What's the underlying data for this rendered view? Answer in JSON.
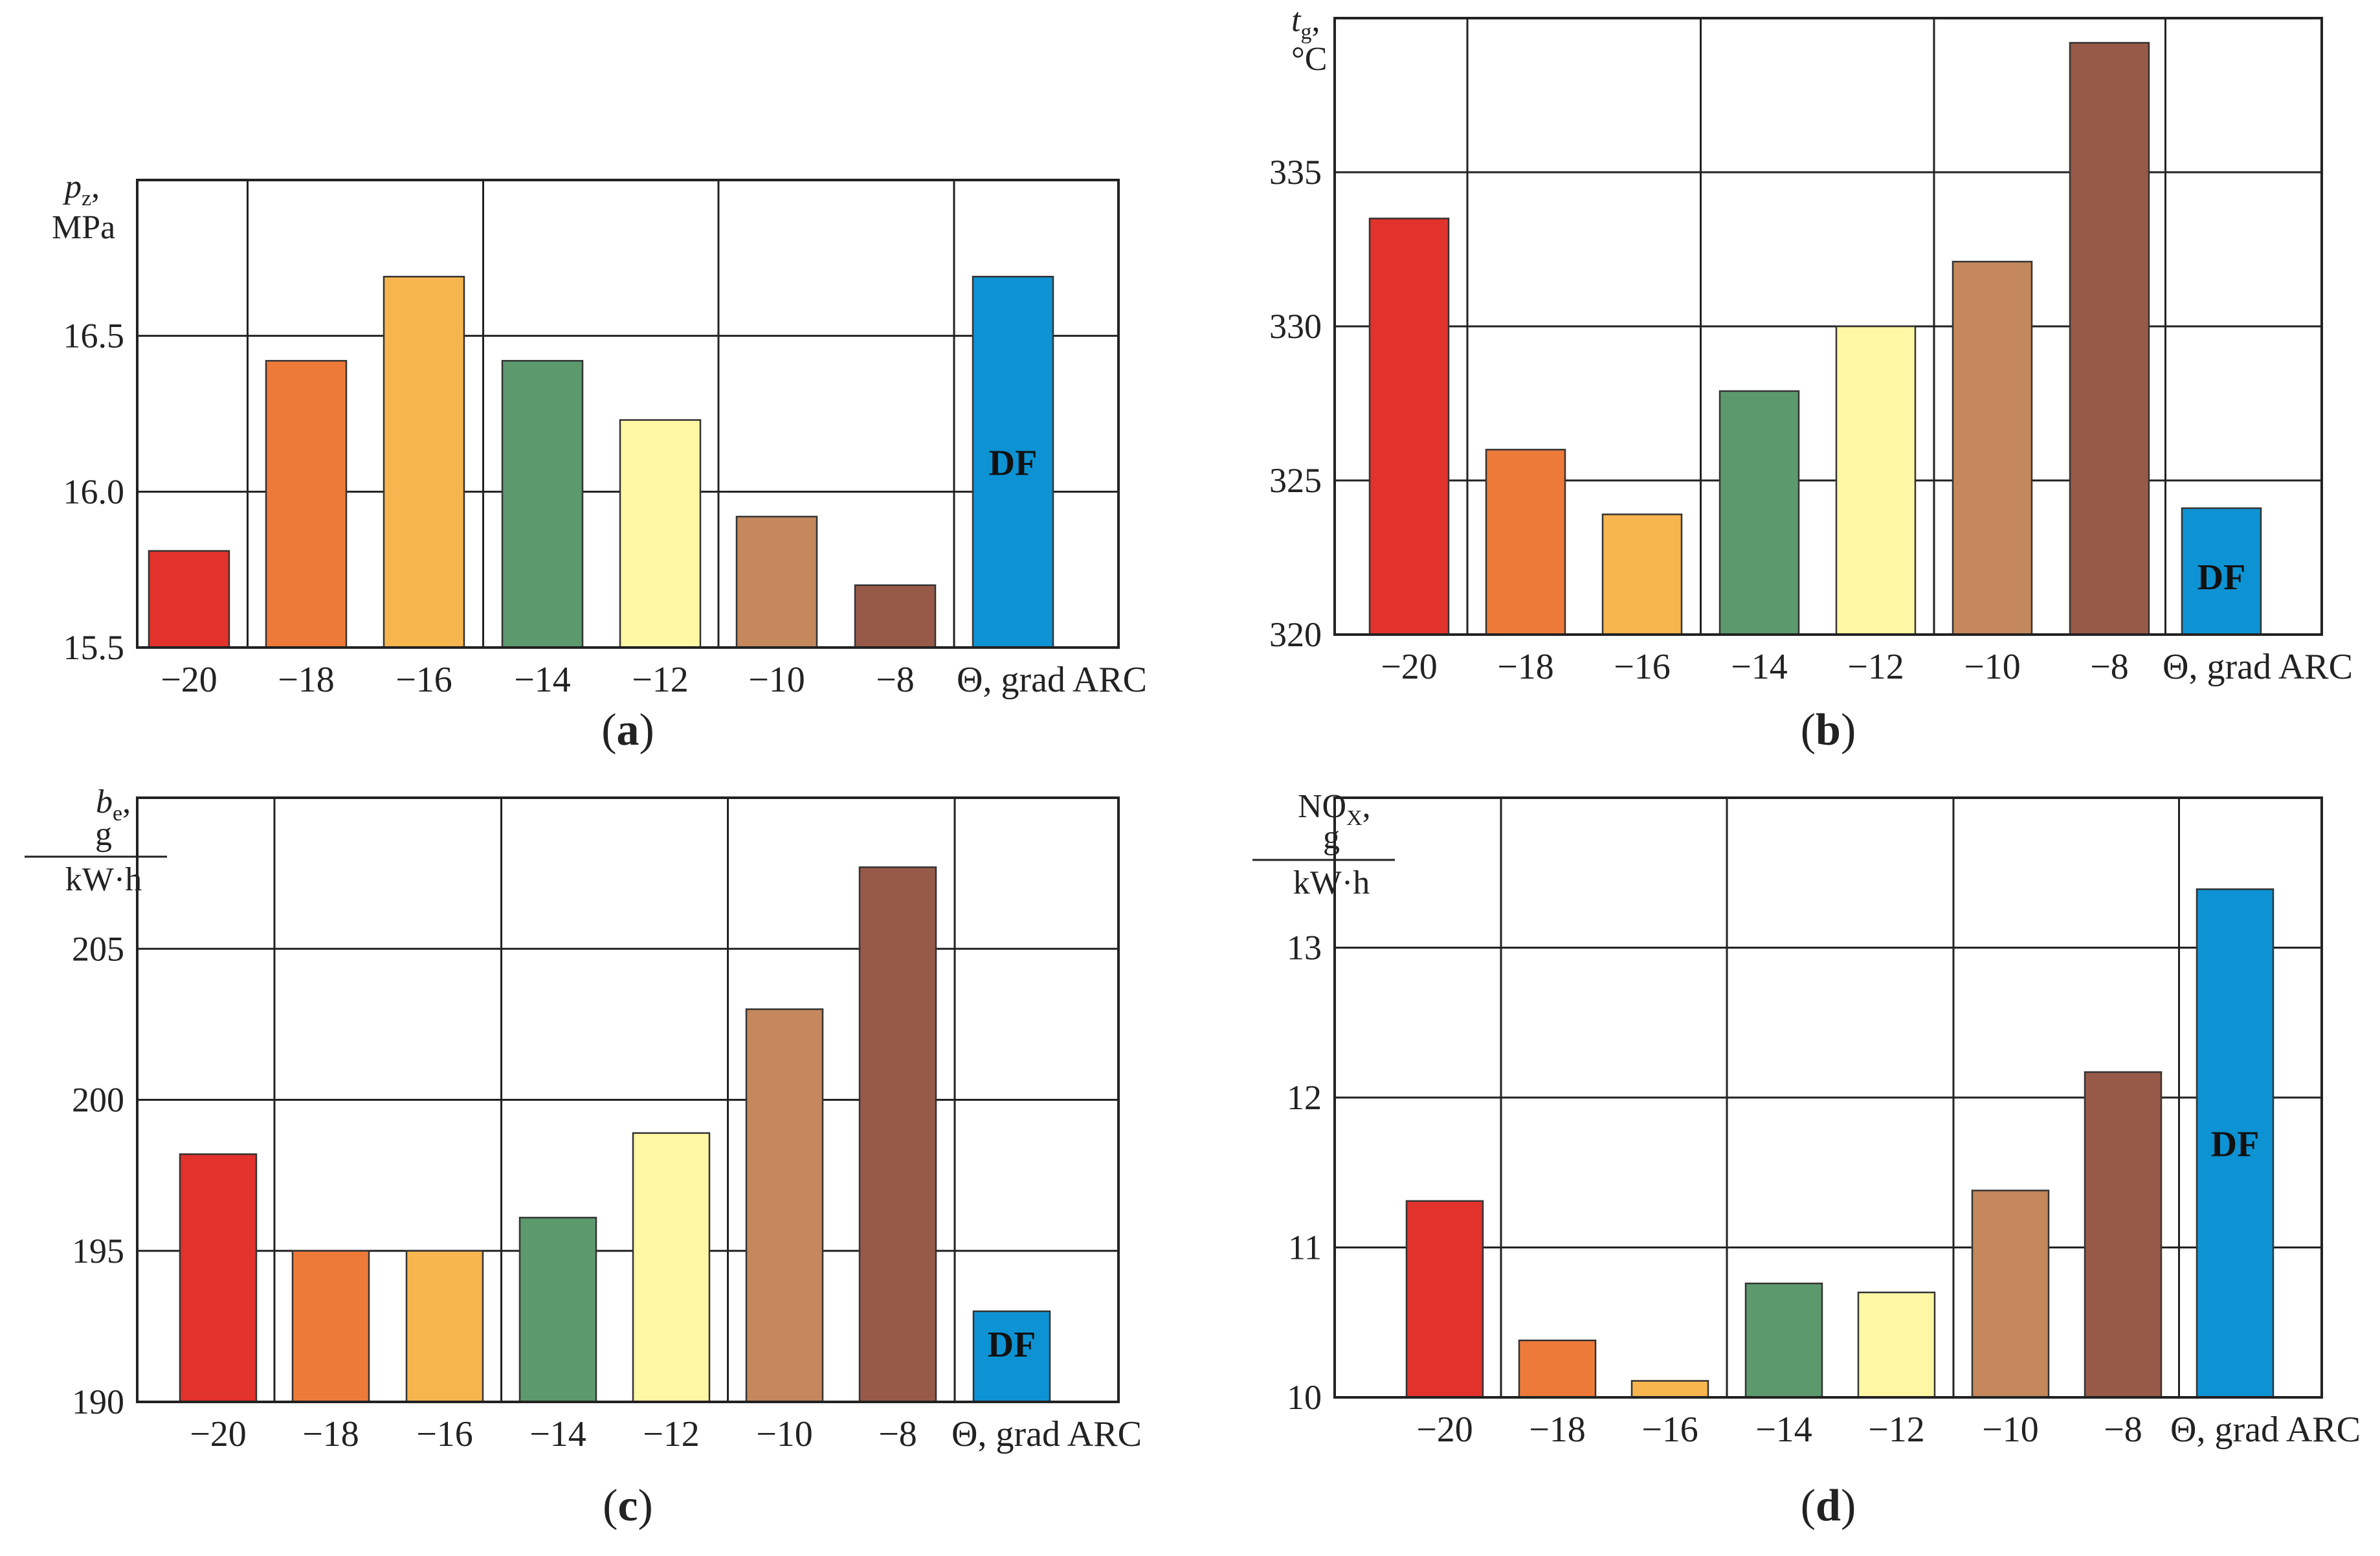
{
  "chart_data": [
    {
      "type": "bar",
      "panel": "a",
      "caption_letter": "a",
      "ylabel_symbol": "p",
      "ylabel_sub": "z",
      "ylabel_unit": "MPa",
      "ylim": [
        15.5,
        17.0
      ],
      "yticks": [
        "15.5",
        "16.0",
        "16.5"
      ],
      "ytick_values": [
        15.5,
        16.0,
        16.5
      ],
      "categories": [
        "−20",
        "−18",
        "−16",
        "−14",
        "−12",
        "−10",
        "−8",
        "DF"
      ],
      "xtick_labels": [
        "−20",
        "−18",
        "−16",
        "−14",
        "−12",
        "−10",
        "−8"
      ],
      "xunit": "Θ, grad ARC",
      "values": [
        15.81,
        16.42,
        16.69,
        16.42,
        16.23,
        15.92,
        15.7,
        16.69
      ],
      "colors": [
        "#e2322c",
        "#ee7a3a",
        "#f7b54e",
        "#5c9a6e",
        "#fff7a3",
        "#c4885c",
        "#985a48",
        "#0d93d3"
      ],
      "bar_label": "DF",
      "grid": true
    },
    {
      "type": "bar",
      "panel": "b",
      "caption_letter": "b",
      "ylabel_symbol": "t",
      "ylabel_sub": "g",
      "ylabel_unit": "°C",
      "ylim": [
        320,
        340
      ],
      "yticks": [
        "320",
        "325",
        "330",
        "335"
      ],
      "ytick_values": [
        320,
        325,
        330,
        335
      ],
      "categories": [
        "−20",
        "−18",
        "−16",
        "−14",
        "−12",
        "−10",
        "−8",
        "DF"
      ],
      "xtick_labels": [
        "−20",
        "−18",
        "−16",
        "−14",
        "−12",
        "−10",
        "−8"
      ],
      "xunit": "Θ, grad ARC",
      "values": [
        333.5,
        326.0,
        323.9,
        327.9,
        330.0,
        332.1,
        339.2,
        324.1
      ],
      "colors": [
        "#e2322c",
        "#ee7a3a",
        "#f7b54e",
        "#5c9a6e",
        "#fff7a3",
        "#c4885c",
        "#985a48",
        "#0d93d3"
      ],
      "bar_label": "DF",
      "grid": true
    },
    {
      "type": "bar",
      "panel": "c",
      "caption_letter": "c",
      "ylabel_symbol": "b",
      "ylabel_sub": "e",
      "ylabel_num": "g",
      "ylabel_den": "kW·h",
      "ylim": [
        190,
        210
      ],
      "yticks": [
        "190",
        "195",
        "200",
        "205"
      ],
      "ytick_values": [
        190,
        195,
        200,
        205
      ],
      "categories": [
        "−20",
        "−18",
        "−16",
        "−14",
        "−12",
        "−10",
        "−8",
        "DF"
      ],
      "xtick_labels": [
        "−20",
        "−18",
        "−16",
        "−14",
        "−12",
        "−10",
        "−8"
      ],
      "xunit": "Θ, grad ARC",
      "values": [
        198.2,
        195.0,
        195.0,
        196.1,
        198.9,
        203.0,
        207.7,
        193.0
      ],
      "colors": [
        "#e2322c",
        "#ee7a3a",
        "#f7b54e",
        "#5c9a6e",
        "#fff7a3",
        "#c4885c",
        "#985a48",
        "#0d93d3"
      ],
      "bar_label": "DF",
      "grid": true
    },
    {
      "type": "bar",
      "panel": "d",
      "caption_letter": "d",
      "ylabel_symbol": "NO",
      "ylabel_sub": "X",
      "ylabel_num": "g",
      "ylabel_den": "kW·h",
      "ylim": [
        10,
        14
      ],
      "yticks": [
        "10",
        "11",
        "12",
        "13"
      ],
      "ytick_values": [
        10,
        11,
        12,
        13
      ],
      "categories": [
        "−20",
        "−18",
        "−16",
        "−14",
        "−12",
        "−10",
        "−8",
        "DF"
      ],
      "xtick_labels": [
        "−20",
        "−18",
        "−16",
        "−14",
        "−12",
        "−10",
        "−8"
      ],
      "xunit": "Θ, grad ARC",
      "values": [
        11.31,
        10.38,
        10.11,
        10.76,
        10.7,
        11.38,
        12.17,
        13.39
      ],
      "colors": [
        "#e2322c",
        "#ee7a3a",
        "#f7b54e",
        "#5c9a6e",
        "#fff7a3",
        "#c4885c",
        "#985a48",
        "#0d93d3"
      ],
      "bar_label": "DF",
      "grid": true
    }
  ]
}
